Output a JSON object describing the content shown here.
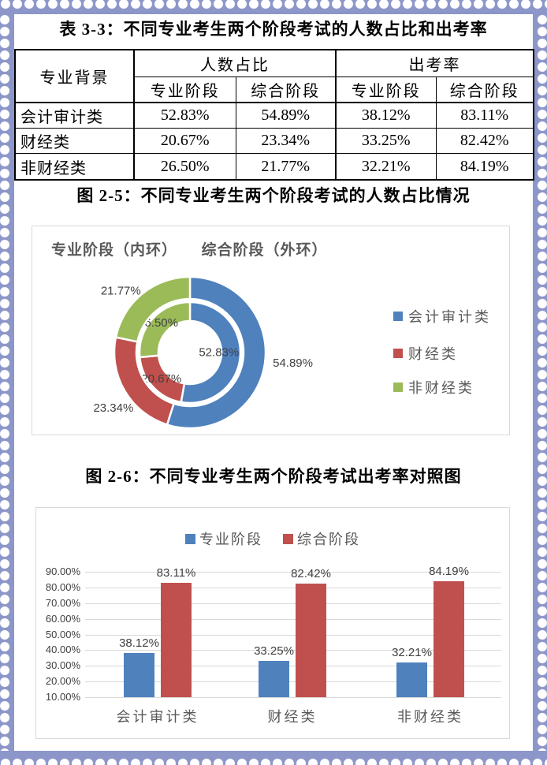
{
  "page": {
    "border_color": "#8C96C9",
    "background": "#ffffff"
  },
  "table": {
    "title": "表 3-3：不同专业考生两个阶段考试的人数占比和出考率",
    "header": {
      "background_label": "专业背景",
      "groups": [
        {
          "label": "人数占比"
        },
        {
          "label": "出考率"
        }
      ],
      "subcols": [
        "专业阶段",
        "综合阶段",
        "专业阶段",
        "综合阶段"
      ]
    },
    "rows": [
      {
        "label": "会计审计类",
        "values": [
          "52.83%",
          "54.89%",
          "38.12%",
          "83.11%"
        ]
      },
      {
        "label": "财经类",
        "values": [
          "20.67%",
          "23.34%",
          "33.25%",
          "82.42%"
        ]
      },
      {
        "label": "非财经类",
        "values": [
          "26.50%",
          "21.77%",
          "32.21%",
          "84.19%"
        ]
      }
    ]
  },
  "figure1": {
    "caption": "图 2-5：不同专业考生两个阶段考试的人数占比情况"
  },
  "figure2": {
    "caption": "图 2-6：不同专业考生两个阶段考试出考率对照图"
  },
  "chart_data": [
    {
      "type": "donut",
      "title": "专业阶段（内环）　　综合阶段（外环）",
      "categories": [
        "会计审计类",
        "财经类",
        "非财经类"
      ],
      "colors": [
        "#4F81BD",
        "#C0504D",
        "#9BBB59"
      ],
      "series": [
        {
          "name": "专业阶段",
          "ring": "inner",
          "values": [
            52.83,
            20.67,
            26.5
          ],
          "labels": [
            "52.83%",
            "20.67%",
            "26.50%"
          ]
        },
        {
          "name": "综合阶段",
          "ring": "outer",
          "values": [
            54.89,
            23.34,
            21.77
          ],
          "labels": [
            "54.89%",
            "23.34%",
            "21.77%"
          ]
        }
      ],
      "legend": [
        "会计审计类",
        "财经类",
        "非财经类"
      ],
      "legend_position": "right",
      "label_color": "#404040"
    },
    {
      "type": "bar",
      "categories": [
        "会计审计类",
        "财经类",
        "非财经类"
      ],
      "series": [
        {
          "name": "专业阶段",
          "color": "#4F81BD",
          "values": [
            38.12,
            33.25,
            32.21
          ],
          "labels": [
            "38.12%",
            "33.25%",
            "32.21%"
          ]
        },
        {
          "name": "综合阶段",
          "color": "#C0504D",
          "values": [
            83.11,
            82.42,
            84.19
          ],
          "labels": [
            "83.11%",
            "82.42%",
            "84.19%"
          ]
        }
      ],
      "ylim": [
        10,
        90
      ],
      "ytick_labels": [
        "10.00%",
        "20.00%",
        "30.00%",
        "40.00%",
        "50.00%",
        "60.00%",
        "70.00%",
        "80.00%",
        "90.00%"
      ],
      "grid": true,
      "legend_position": "top",
      "label_color": "#404040"
    }
  ]
}
